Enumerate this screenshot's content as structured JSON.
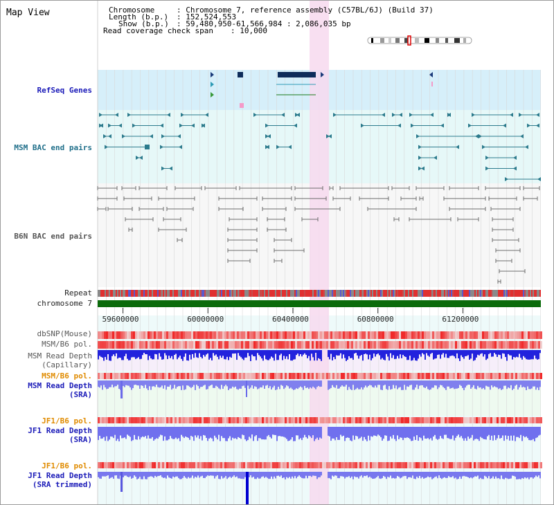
{
  "title": "Map View",
  "header": {
    "chromosome_key": "Chromosome",
    "chromosome_value": ": Chromosome 7, reference assembly (C57BL/6J) (Build 37)",
    "length_key": "Length (b.p.)",
    "length_value": ": 152,524,553",
    "show_key": "Show (b.p.)",
    "show_value": ": 59,480,950-61,566,984 : 2,086,035 bp",
    "coverage_key": "Read coverage check span",
    "coverage_value": ": 10,000"
  },
  "tracks": {
    "refseq": "RefSeq Genes",
    "msm_bac": "MSM BAC end pairs",
    "b6n_bac": "B6N BAC end pairs",
    "repeat": "Repeat",
    "chromosome": "chromosome 7",
    "dbsnp": "dbSNP(Mouse)",
    "msm_b6_pol_1": "MSM/B6 pol.",
    "msm_depth_cap_1": "MSM Read Depth",
    "msm_depth_cap_2": "(Capillary)",
    "msm_b6_pol_2": "MSM/B6 pol.",
    "msm_depth_sra_1": "MSM Read Depth",
    "msm_depth_sra_2": "(SRA)",
    "jf1_b6_pol_1": "JF1/B6 pol.",
    "jf1_depth_sra_1": "JF1 Read Depth",
    "jf1_depth_sra_2": "(SRA)",
    "jf1_b6_pol_2": "JF1/B6 pol.",
    "jf1_depth_trim_1": "JF1 Read Depth",
    "jf1_depth_trim_2": "(SRA trimmed)"
  },
  "axis": {
    "ticks": [
      "59600000",
      "60000000",
      "60400000",
      "60800000",
      "61200000"
    ],
    "tick_values": [
      59600000,
      60000000,
      60400000,
      60800000,
      61200000
    ],
    "start": 59480950,
    "end": 61566984
  },
  "colors": {
    "refseq_bg": "#d6effa",
    "msm_bac_bg": "#e6f8f8",
    "b6n_bg": "#f7f7f7",
    "highlight": "#f7d9ee",
    "chromosome_bar": "#0b6b0b",
    "teal": "#2b7a8c",
    "gray_feat": "#6c6c6c",
    "gene_dark": "#0e2c5a"
  }
}
